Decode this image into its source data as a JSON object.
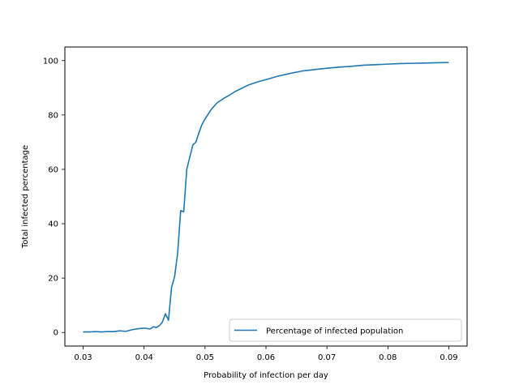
{
  "colors": {
    "series": "#1f77b4",
    "axes": "#000000",
    "background": "#ffffff",
    "legend_border": "#cccccc"
  },
  "chart_data": {
    "type": "line",
    "title": "",
    "xlabel": "Probability of infection per day",
    "ylabel": "Total infected percentage",
    "xlim": [
      0.027,
      0.093
    ],
    "ylim": [
      -5,
      105
    ],
    "xticks": [
      0.03,
      0.04,
      0.05,
      0.06,
      0.07,
      0.08,
      0.09
    ],
    "xtick_labels": [
      "0.03",
      "0.04",
      "0.05",
      "0.06",
      "0.07",
      "0.08",
      "0.09"
    ],
    "yticks": [
      0,
      20,
      40,
      60,
      80,
      100
    ],
    "ytick_labels": [
      "0",
      "20",
      "40",
      "60",
      "80",
      "100"
    ],
    "grid": false,
    "legend_position": "lower right",
    "series": [
      {
        "name": "Percentage of infected population",
        "x": [
          0.03,
          0.031,
          0.032,
          0.033,
          0.034,
          0.035,
          0.036,
          0.037,
          0.038,
          0.039,
          0.04,
          0.041,
          0.0415,
          0.042,
          0.0425,
          0.043,
          0.0435,
          0.044,
          0.0445,
          0.045,
          0.0455,
          0.046,
          0.0465,
          0.047,
          0.0475,
          0.048,
          0.0485,
          0.049,
          0.0495,
          0.05,
          0.051,
          0.052,
          0.053,
          0.054,
          0.055,
          0.056,
          0.057,
          0.058,
          0.059,
          0.06,
          0.062,
          0.064,
          0.066,
          0.068,
          0.07,
          0.072,
          0.074,
          0.076,
          0.078,
          0.08,
          0.082,
          0.084,
          0.086,
          0.088,
          0.09
        ],
        "y": [
          0.2,
          0.2,
          0.3,
          0.2,
          0.3,
          0.3,
          0.6,
          0.4,
          1.0,
          1.4,
          1.6,
          1.3,
          2.1,
          1.8,
          2.5,
          3.8,
          6.9,
          4.5,
          16.5,
          20.5,
          29.0,
          44.8,
          44.4,
          60.0,
          64.5,
          69.0,
          70.0,
          73.5,
          76.5,
          78.5,
          82.0,
          84.5,
          86.0,
          87.3,
          88.7,
          89.8,
          90.9,
          91.7,
          92.4,
          93.0,
          94.3,
          95.3,
          96.2,
          96.7,
          97.2,
          97.6,
          97.9,
          98.3,
          98.5,
          98.7,
          98.9,
          99.0,
          99.1,
          99.2,
          99.3
        ]
      }
    ]
  }
}
